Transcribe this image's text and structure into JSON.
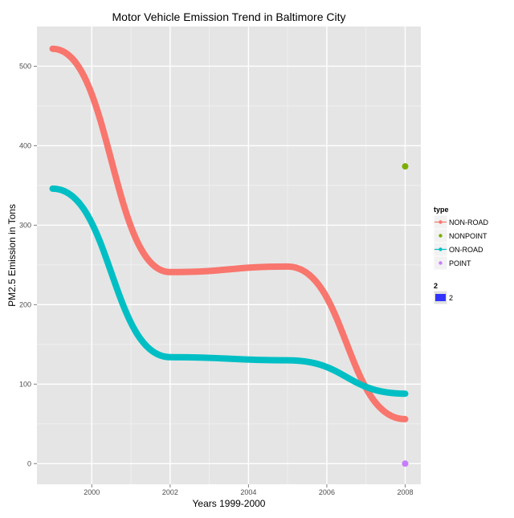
{
  "chart_data": {
    "type": "line",
    "title": "Motor Vehicle Emission Trend in Baltimore City",
    "xlabel": "Years 1999-2000",
    "ylabel": "PM2.5 Emission in Tons",
    "xlim": [
      1998.6,
      2008.4
    ],
    "ylim": [
      -26,
      550
    ],
    "x_ticks": [
      2000,
      2002,
      2004,
      2006,
      2008
    ],
    "y_ticks": [
      0,
      100,
      200,
      300,
      400,
      500
    ],
    "grid": true,
    "legend": {
      "position": "right",
      "type_title": "type",
      "size_title": "2",
      "size_label": "2",
      "size_color": "#3333ff"
    },
    "series": [
      {
        "name": "NON-ROAD",
        "color": "#f8766d",
        "style": "smooth-line",
        "points": [
          [
            1999,
            522
          ],
          [
            2002,
            241
          ],
          [
            2005,
            248
          ],
          [
            2008,
            56
          ]
        ]
      },
      {
        "name": "NONPOINT",
        "color": "#7cae00",
        "style": "point",
        "points": [
          [
            2008,
            374
          ]
        ]
      },
      {
        "name": "ON-ROAD",
        "color": "#00bfc4",
        "style": "smooth-line",
        "points": [
          [
            1999,
            346
          ],
          [
            2002,
            134
          ],
          [
            2005,
            130
          ],
          [
            2008,
            88
          ]
        ]
      },
      {
        "name": "POINT",
        "color": "#c77cff",
        "style": "point",
        "points": [
          [
            2008,
            0
          ]
        ]
      }
    ]
  }
}
